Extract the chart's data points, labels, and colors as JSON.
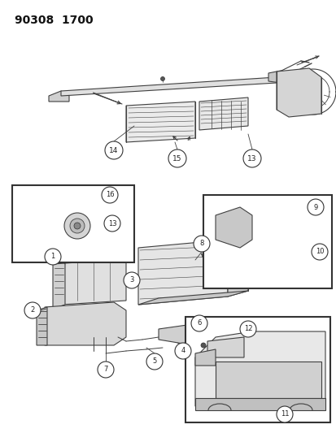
{
  "title": "90308  1700",
  "bg": "#ffffff",
  "lc": "#404040",
  "fw": 4.14,
  "fh": 5.33,
  "dpi": 100,
  "callout_fc": "#ffffff",
  "callout_ec": "#333333",
  "inset_ec": "#333333",
  "title_fontsize": 10,
  "callout_fontsize": 6,
  "callout_r": 0.013
}
